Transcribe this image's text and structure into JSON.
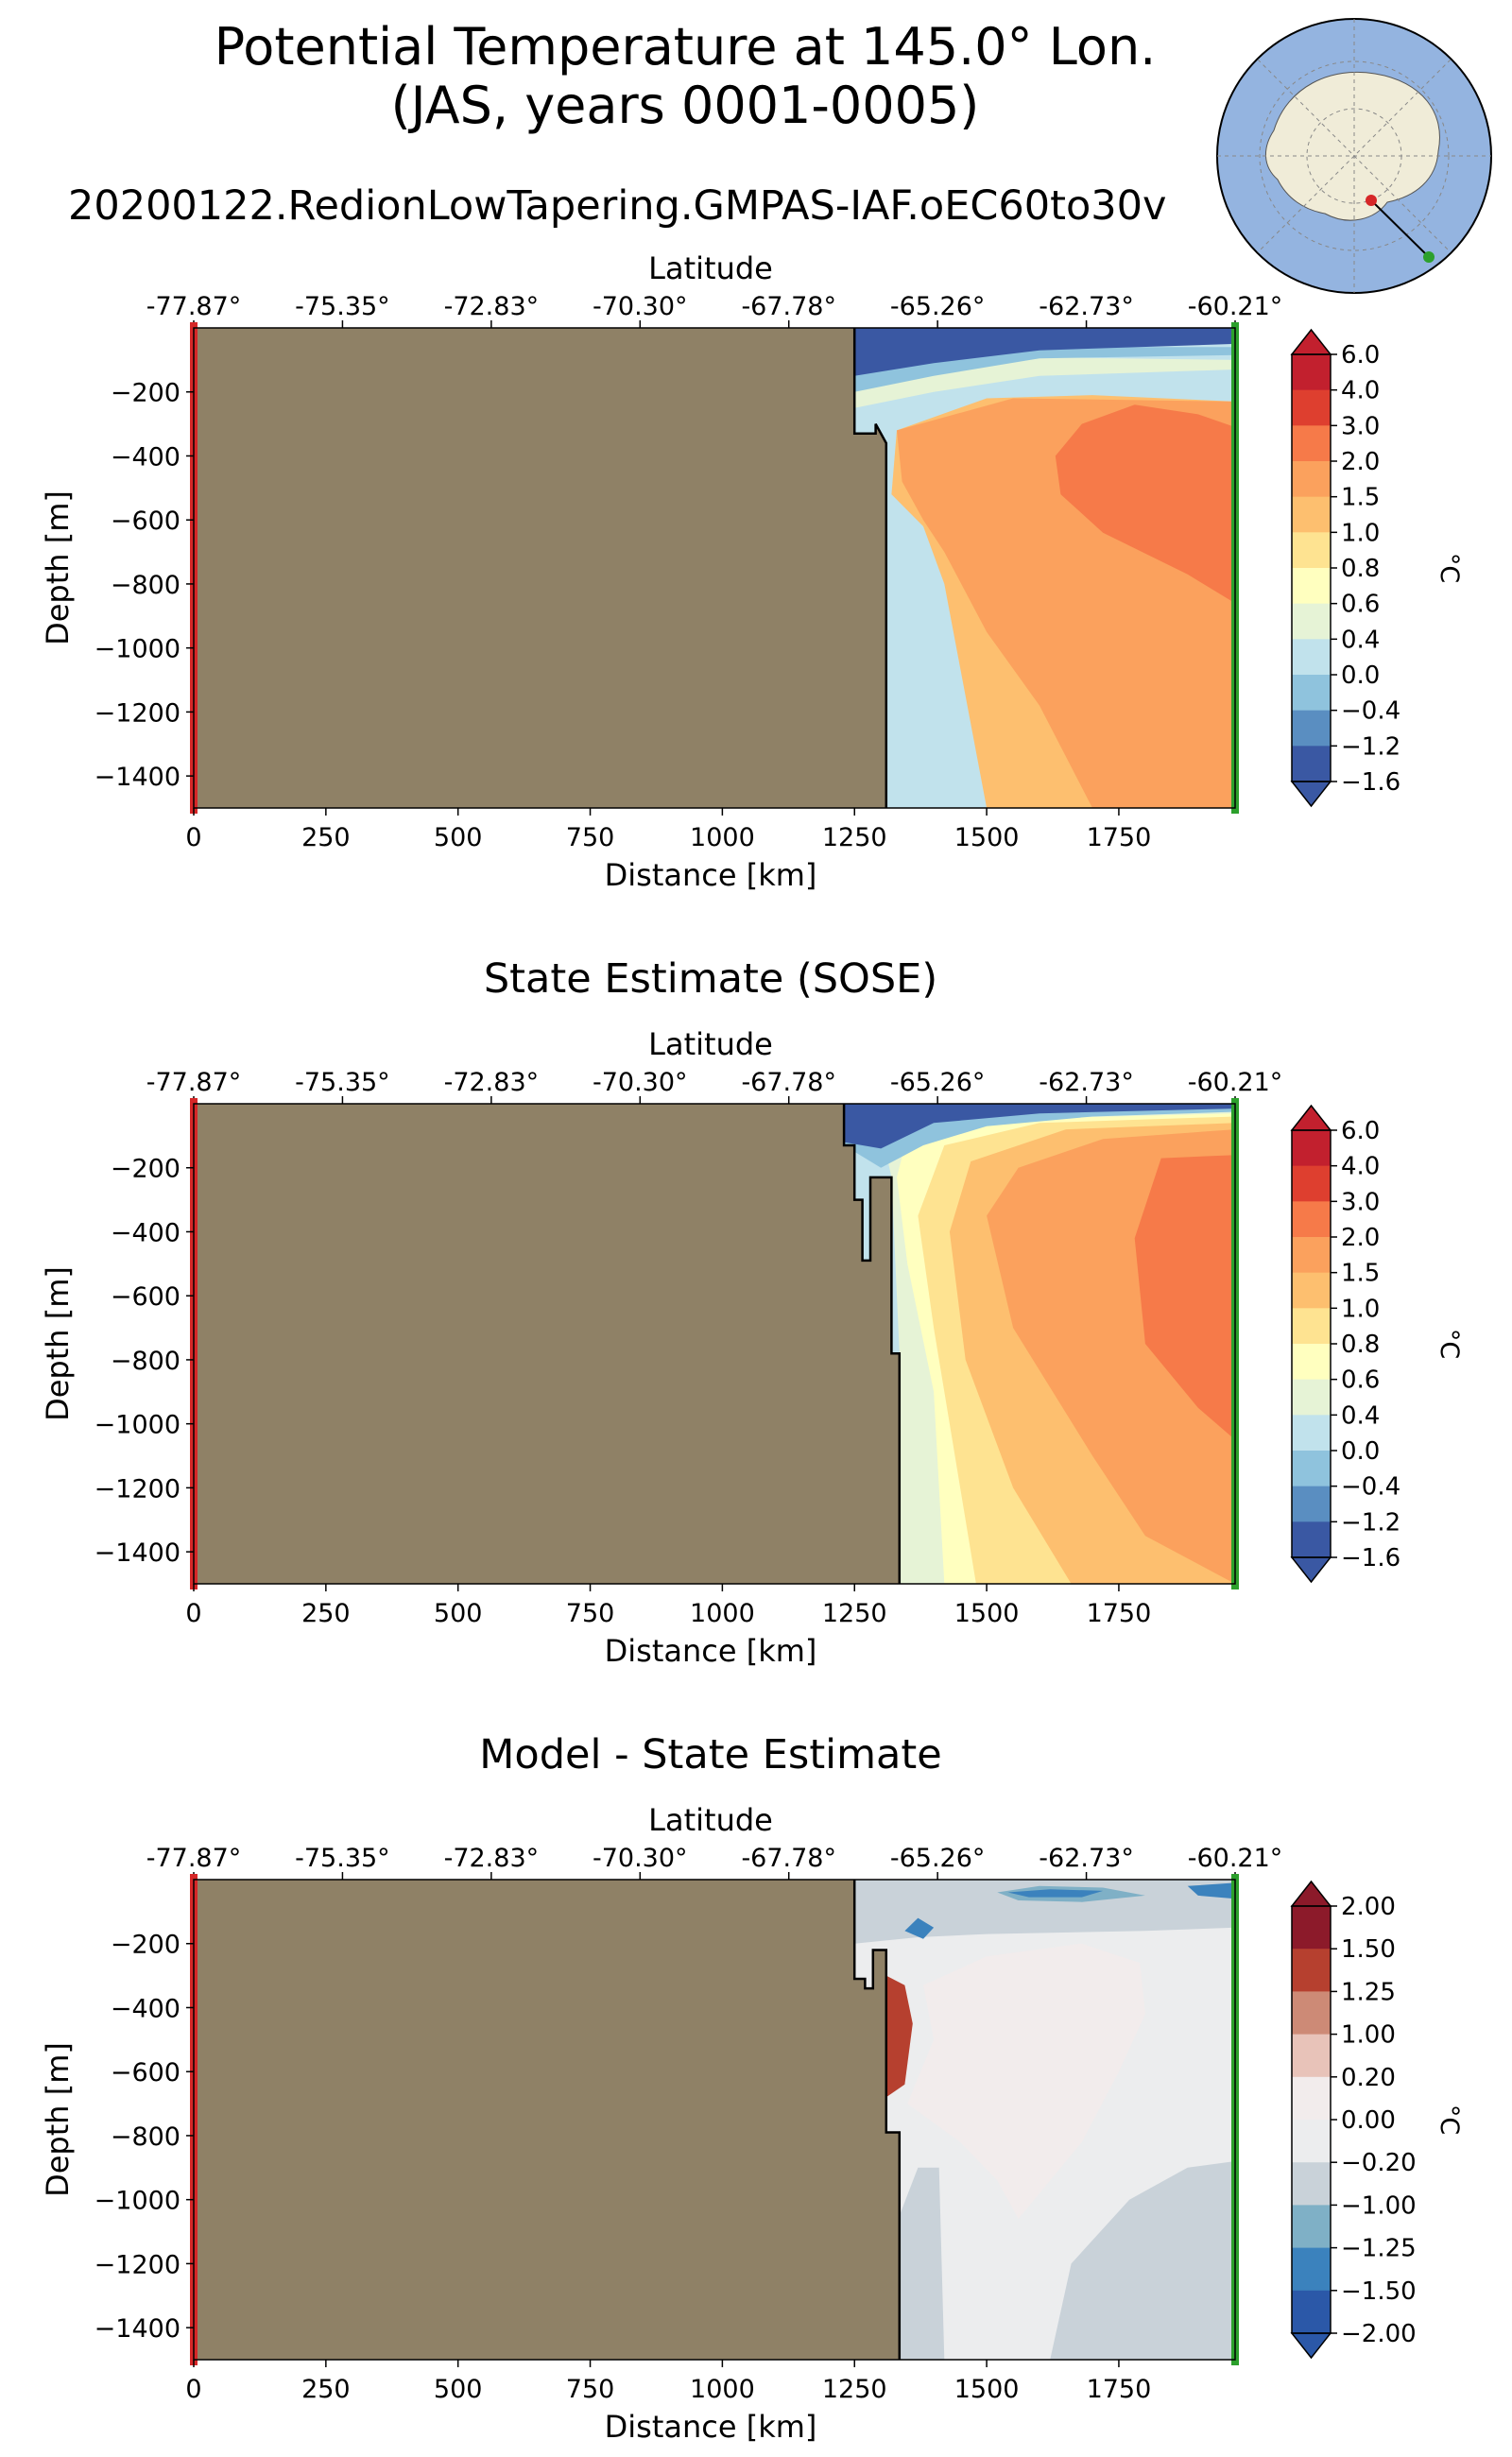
{
  "figure": {
    "title_line1": "Potential Temperature at 145.0° Lon.",
    "title_line2": "(JAS, years 0001-0005)",
    "run_name": "20200122.RedionLowTapering.GMPAS-IAF.oEC60to30v",
    "colors": {
      "land": "#8f8166",
      "start_marker": "#d62728",
      "end_marker": "#2ca02c",
      "map_ocean": "#94b4e0",
      "map_land": "#f0ecd8"
    }
  },
  "chart_data": [
    {
      "type": "heatmap",
      "title": "",
      "top_axis_label": "Latitude",
      "top_ticks": [
        "-77.87°",
        "-75.35°",
        "-72.83°",
        "-70.30°",
        "-67.78°",
        "-65.26°",
        "-62.73°",
        "-60.21°"
      ],
      "xlabel": "Distance [km]",
      "ylabel": "Depth [m]",
      "xticks": [
        0,
        250,
        500,
        750,
        1000,
        1250,
        1500,
        1750
      ],
      "yticks": [
        -200,
        -400,
        -600,
        -800,
        -1000,
        -1200,
        -1400
      ],
      "xlim": [
        0,
        1970
      ],
      "ylim": [
        -1500,
        0
      ],
      "colorbar": {
        "label": "°C",
        "ticks": [
          "6.0",
          "4.0",
          "3.0",
          "2.0",
          "1.5",
          "1.0",
          "0.8",
          "0.6",
          "0.4",
          "0.0",
          "−0.4",
          "−1.2",
          "−1.6"
        ],
        "colors": [
          "#c2202e",
          "#de3f2f",
          "#f67a49",
          "#fba15d",
          "#fdbf6f",
          "#fee391",
          "#ffffbf",
          "#e6f3d6",
          "#c1e2ec",
          "#8fc3dd",
          "#5a8ec1",
          "#3a58a3"
        ]
      },
      "land_boundary": [
        [
          1250,
          0
        ],
        [
          1250,
          -330
        ],
        [
          1290,
          -330
        ],
        [
          1290,
          -300
        ],
        [
          1310,
          -360
        ],
        [
          1310,
          -1500
        ]
      ],
      "grid": false
    },
    {
      "type": "heatmap",
      "title": "State Estimate (SOSE)",
      "top_axis_label": "Latitude",
      "top_ticks": [
        "-77.87°",
        "-75.35°",
        "-72.83°",
        "-70.30°",
        "-67.78°",
        "-65.26°",
        "-62.73°",
        "-60.21°"
      ],
      "xlabel": "Distance [km]",
      "ylabel": "Depth [m]",
      "xticks": [
        0,
        250,
        500,
        750,
        1000,
        1250,
        1500,
        1750
      ],
      "yticks": [
        -200,
        -400,
        -600,
        -800,
        -1000,
        -1200,
        -1400
      ],
      "xlim": [
        0,
        1970
      ],
      "ylim": [
        -1500,
        0
      ],
      "colorbar": {
        "label": "°C",
        "ticks": [
          "6.0",
          "4.0",
          "3.0",
          "2.0",
          "1.5",
          "1.0",
          "0.8",
          "0.6",
          "0.4",
          "0.0",
          "−0.4",
          "−1.2",
          "−1.6"
        ],
        "colors": [
          "#c2202e",
          "#de3f2f",
          "#f67a49",
          "#fba15d",
          "#fdbf6f",
          "#fee391",
          "#ffffbf",
          "#e6f3d6",
          "#c1e2ec",
          "#8fc3dd",
          "#5a8ec1",
          "#3a58a3"
        ]
      },
      "land_boundary": [
        [
          1230,
          0
        ],
        [
          1230,
          -130
        ],
        [
          1250,
          -130
        ],
        [
          1250,
          -300
        ],
        [
          1265,
          -300
        ],
        [
          1265,
          -490
        ],
        [
          1280,
          -490
        ],
        [
          1280,
          -230
        ],
        [
          1320,
          -230
        ],
        [
          1320,
          -780
        ],
        [
          1335,
          -780
        ],
        [
          1335,
          -1500
        ]
      ],
      "grid": false
    },
    {
      "type": "heatmap",
      "title": "Model - State Estimate",
      "top_axis_label": "Latitude",
      "top_ticks": [
        "-77.87°",
        "-75.35°",
        "-72.83°",
        "-70.30°",
        "-67.78°",
        "-65.26°",
        "-62.73°",
        "-60.21°"
      ],
      "xlabel": "Distance [km]",
      "ylabel": "Depth [m]",
      "xticks": [
        0,
        250,
        500,
        750,
        1000,
        1250,
        1500,
        1750
      ],
      "yticks": [
        -200,
        -400,
        -600,
        -800,
        -1000,
        -1200,
        -1400
      ],
      "xlim": [
        0,
        1970
      ],
      "ylim": [
        -1500,
        0
      ],
      "colorbar": {
        "label": "°C",
        "ticks": [
          "2.00",
          "1.50",
          "1.25",
          "1.00",
          "0.20",
          "0.00",
          "−0.20",
          "−1.00",
          "−1.25",
          "−1.50",
          "−2.00"
        ],
        "colors": [
          "#8c1a2a",
          "#b6402f",
          "#cd8a76",
          "#e8c3b9",
          "#f2ecec",
          "#ecedee",
          "#c9d2d9",
          "#7fb0c6",
          "#3b82bd",
          "#2b58a8"
        ]
      },
      "land_boundary": [
        [
          1250,
          0
        ],
        [
          1250,
          -310
        ],
        [
          1270,
          -310
        ],
        [
          1270,
          -340
        ],
        [
          1285,
          -340
        ],
        [
          1285,
          -220
        ],
        [
          1310,
          -220
        ],
        [
          1310,
          -790
        ],
        [
          1335,
          -790
        ],
        [
          1335,
          -1500
        ]
      ],
      "grid": false
    }
  ]
}
